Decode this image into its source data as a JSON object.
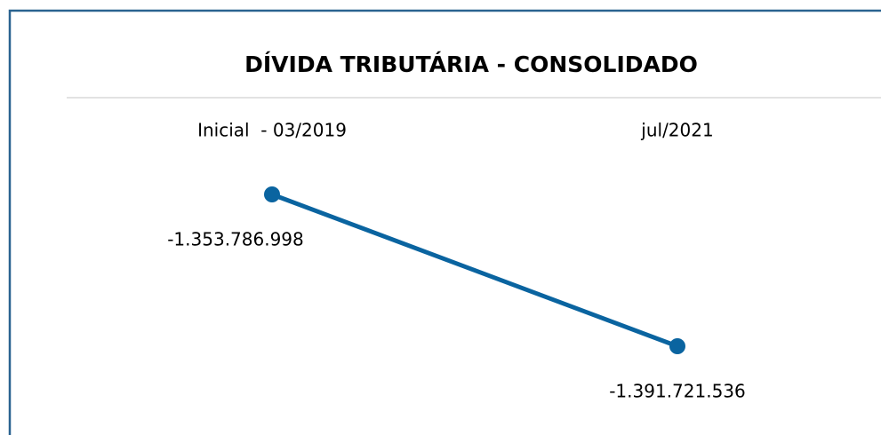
{
  "chart_data": {
    "type": "line",
    "title": "DÍVIDA TRIBUTÁRIA - CONSOLIDADO",
    "categories": [
      "Inicial  - 03/2019",
      "jul/2021"
    ],
    "series": [
      {
        "color": "#0a64a0",
        "values": [
          -1353786998,
          -1391721536
        ],
        "value_labels": [
          "-1.353.786.998",
          "-1.391.721.536"
        ]
      }
    ]
  }
}
